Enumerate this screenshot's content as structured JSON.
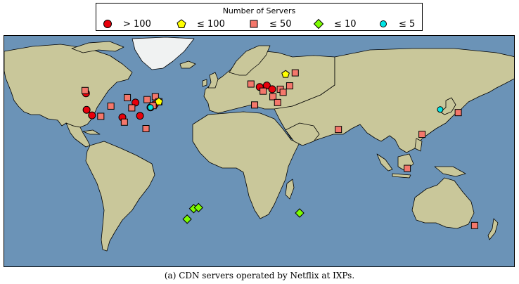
{
  "legend": {
    "title": "Number of Servers",
    "items": [
      {
        "label": "> 100",
        "shape": "circle",
        "color": "#e8000b"
      },
      {
        "label": "≤ 100",
        "shape": "pentagon",
        "color": "#ffff00"
      },
      {
        "label": "≤ 50",
        "shape": "square",
        "color": "#f4776b"
      },
      {
        "label": "≤ 10",
        "shape": "diamond",
        "color": "#7cfc00"
      },
      {
        "label": "≤ 5",
        "shape": "circle",
        "color": "#00e5e5"
      }
    ]
  },
  "caption": "(a) CDN servers operated by Netflix at IXPs.",
  "colors": {
    "ocean": "#6b93b7",
    "land": "#c9c79a",
    "ice": "#f0f2f2",
    "border": "#000000"
  },
  "servers": [
    {
      "cat": 0,
      "lon": -122.4,
      "lat": 47.6
    },
    {
      "cat": 0,
      "lon": -122.0,
      "lat": 37.4
    },
    {
      "cat": 0,
      "lon": -118.2,
      "lat": 34.0
    },
    {
      "cat": 0,
      "lon": -87.6,
      "lat": 41.9
    },
    {
      "cat": 0,
      "lon": -96.8,
      "lat": 32.8
    },
    {
      "cat": 0,
      "lon": -84.4,
      "lat": 33.7
    },
    {
      "cat": 0,
      "lon": -77.0,
      "lat": 38.9
    },
    {
      "cat": 0,
      "lon": -74.0,
      "lat": 40.7
    },
    {
      "cat": 0,
      "lon": 4.9,
      "lat": 52.4
    },
    {
      "cat": 0,
      "lon": 8.7,
      "lat": 50.1
    },
    {
      "cat": 0,
      "lon": -0.1,
      "lat": 51.5
    },
    {
      "cat": 2,
      "lon": -123.1,
      "lat": 49.3
    },
    {
      "cat": 2,
      "lon": -79.4,
      "lat": 43.7
    },
    {
      "cat": 2,
      "lon": -73.6,
      "lat": 45.5
    },
    {
      "cat": 2,
      "lon": -104.9,
      "lat": 39.7
    },
    {
      "cat": 2,
      "lon": -112.0,
      "lat": 33.4
    },
    {
      "cat": 2,
      "lon": -93.3,
      "lat": 44.9
    },
    {
      "cat": 2,
      "lon": -95.4,
      "lat": 29.8
    },
    {
      "cat": 2,
      "lon": -80.2,
      "lat": 25.8
    },
    {
      "cat": 2,
      "lon": -71.1,
      "lat": 42.4
    },
    {
      "cat": 2,
      "lon": -75.2,
      "lat": 40.0
    },
    {
      "cat": 2,
      "lon": -90.2,
      "lat": 38.6
    },
    {
      "cat": 2,
      "lon": -3.7,
      "lat": 40.4
    },
    {
      "cat": 2,
      "lon": -6.3,
      "lat": 53.3
    },
    {
      "cat": 2,
      "lon": 2.3,
      "lat": 48.9
    },
    {
      "cat": 2,
      "lon": 9.2,
      "lat": 45.5
    },
    {
      "cat": 2,
      "lon": 12.5,
      "lat": 41.9
    },
    {
      "cat": 2,
      "lon": 14.4,
      "lat": 50.1
    },
    {
      "cat": 2,
      "lon": 16.4,
      "lat": 48.2
    },
    {
      "cat": 2,
      "lon": 21.0,
      "lat": 52.2
    },
    {
      "cat": 2,
      "lon": 24.9,
      "lat": 60.2
    },
    {
      "cat": 2,
      "lon": 55.3,
      "lat": 25.3
    },
    {
      "cat": 2,
      "lon": 114.2,
      "lat": 22.3
    },
    {
      "cat": 2,
      "lon": 103.8,
      "lat": 1.3
    },
    {
      "cat": 2,
      "lon": 139.7,
      "lat": 35.7
    },
    {
      "cat": 2,
      "lon": 151.2,
      "lat": -33.9
    },
    {
      "cat": 1,
      "lon": 18.1,
      "lat": 59.3
    },
    {
      "cat": 1,
      "lon": -71.1,
      "lat": 42.4
    },
    {
      "cat": 3,
      "lon": -46.6,
      "lat": -23.5
    },
    {
      "cat": 3,
      "lon": -43.2,
      "lat": -22.9
    },
    {
      "cat": 3,
      "lon": -51.2,
      "lat": -30.0
    },
    {
      "cat": 3,
      "lon": 28.0,
      "lat": -26.2
    },
    {
      "cat": 4,
      "lon": -77.0,
      "lat": 38.9
    },
    {
      "cat": 4,
      "lon": 127.0,
      "lat": 37.6
    }
  ]
}
